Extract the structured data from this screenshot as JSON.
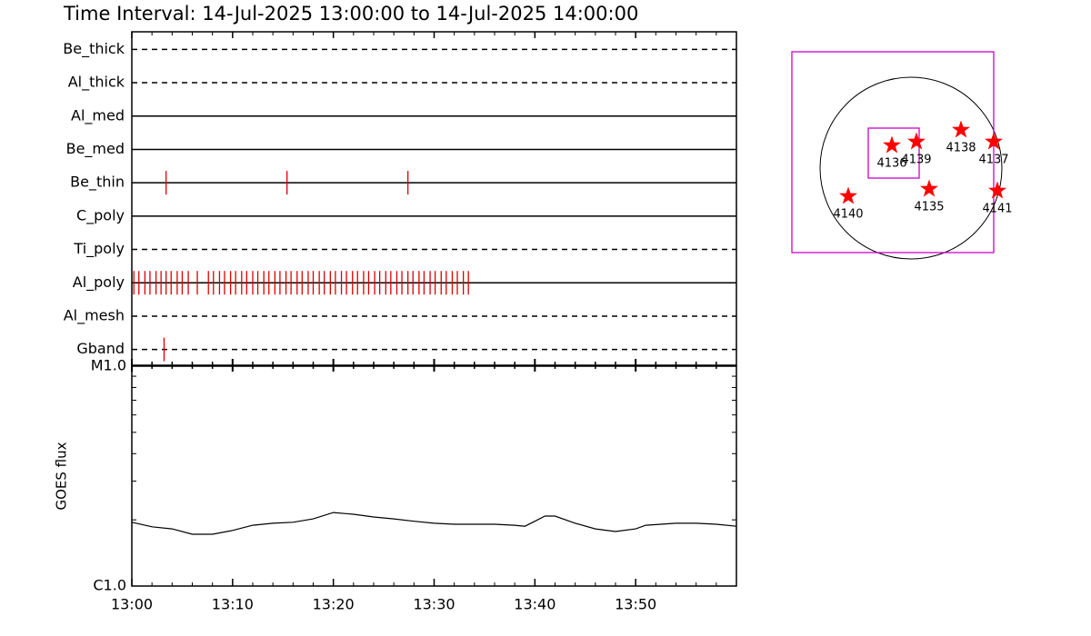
{
  "title": "Time Interval: 14-Jul-2025 13:00:00 to 14-Jul-2025 14:00:00",
  "chart_data": [
    {
      "type": "timeline",
      "xlim": [
        0,
        60
      ],
      "xticks": [
        0,
        10,
        20,
        30,
        40,
        50
      ],
      "xminor": [
        2,
        4,
        6,
        8,
        12,
        14,
        16,
        18,
        22,
        24,
        26,
        28,
        32,
        34,
        36,
        38,
        42,
        44,
        46,
        48,
        52,
        54,
        56,
        58
      ],
      "color": "#dd0000",
      "series": [
        {
          "name": "Be_thick",
          "style": "dashed",
          "values": []
        },
        {
          "name": "Al_thick",
          "style": "dashed",
          "values": []
        },
        {
          "name": "Al_med",
          "style": "solid",
          "values": []
        },
        {
          "name": "Be_med",
          "style": "solid",
          "values": []
        },
        {
          "name": "Be_thin",
          "style": "solid",
          "values": [
            3.4,
            15.4,
            27.4
          ]
        },
        {
          "name": "C_poly",
          "style": "solid",
          "values": []
        },
        {
          "name": "Ti_poly",
          "style": "dashed",
          "values": []
        },
        {
          "name": "Al_poly",
          "style": "solid",
          "values": [
            0.2,
            0.7,
            1.3,
            1.8,
            2.4,
            2.9,
            3.4,
            3.9,
            4.5,
            5.0,
            5.6,
            6.5,
            7.6,
            8.1,
            8.7,
            9.2,
            9.8,
            10.3,
            10.9,
            11.4,
            12.0,
            12.5,
            13.1,
            13.6,
            14.2,
            14.7,
            15.3,
            15.8,
            16.4,
            16.9,
            17.5,
            18.0,
            18.6,
            19.1,
            19.7,
            20.2,
            20.8,
            21.3,
            21.9,
            22.4,
            23.0,
            23.5,
            24.1,
            24.6,
            25.2,
            25.7,
            26.3,
            26.8,
            27.4,
            27.9,
            28.5,
            29.0,
            29.6,
            30.1,
            30.7,
            31.2,
            31.8,
            32.3,
            32.9,
            33.4
          ]
        },
        {
          "name": "Al_mesh",
          "style": "dashed",
          "values": []
        },
        {
          "name": "Gband",
          "style": "dashed",
          "values": [
            3.2
          ]
        }
      ]
    },
    {
      "type": "line",
      "ylabel": "GOES flux",
      "log": true,
      "xlim": [
        0,
        60
      ],
      "xticks": [
        {
          "value": 0,
          "label": "13:00"
        },
        {
          "value": 10,
          "label": "13:10"
        },
        {
          "value": 20,
          "label": "13:20"
        },
        {
          "value": 30,
          "label": "13:30"
        },
        {
          "value": 40,
          "label": "13:40"
        },
        {
          "value": 50,
          "label": "13:50"
        }
      ],
      "xminor": [
        2,
        4,
        6,
        8,
        12,
        14,
        16,
        18,
        22,
        24,
        26,
        28,
        32,
        34,
        36,
        38,
        42,
        44,
        46,
        48,
        52,
        54,
        56,
        58
      ],
      "ylim": [
        1e-06,
        1e-05
      ],
      "yticks": [
        {
          "value": 1e-06,
          "label": "C1.0"
        },
        {
          "value": 1e-05,
          "label": "M1.0"
        }
      ],
      "yminor": [
        2e-06,
        3e-06,
        4e-06,
        5e-06,
        6e-06,
        7e-06,
        8e-06,
        9e-06
      ],
      "color": "#000000",
      "x": [
        0,
        2,
        4,
        6,
        8,
        10,
        12,
        14,
        16,
        18,
        20,
        22,
        24,
        26,
        28,
        30,
        32,
        34,
        36,
        38,
        39,
        40,
        41,
        42,
        44,
        46,
        48,
        50,
        51,
        54,
        56,
        58,
        60
      ],
      "values": [
        1.95e-06,
        1.86e-06,
        1.82e-06,
        1.72e-06,
        1.72e-06,
        1.79e-06,
        1.89e-06,
        1.93e-06,
        1.95e-06,
        2.02e-06,
        2.16e-06,
        2.12e-06,
        2.06e-06,
        2.02e-06,
        1.97e-06,
        1.93e-06,
        1.91e-06,
        1.91e-06,
        1.91e-06,
        1.89e-06,
        1.87e-06,
        1.97e-06,
        2.08e-06,
        2.08e-06,
        1.93e-06,
        1.82e-06,
        1.77e-06,
        1.82e-06,
        1.89e-06,
        1.93e-06,
        1.93e-06,
        1.91e-06,
        1.87e-06
      ]
    },
    {
      "type": "disk",
      "star_color": "#ff0000",
      "box_color": "#cc00cc",
      "boxes": [
        {
          "x": -0.2,
          "y": 0.175,
          "w": 2.22,
          "h": 2.21
        },
        {
          "x": -0.19,
          "y": 0.165,
          "w": 0.56,
          "h": 0.55
        }
      ],
      "regions": [
        {
          "name": "4136",
          "x": -0.21,
          "y": 0.25
        },
        {
          "name": "4139",
          "x": 0.06,
          "y": 0.29
        },
        {
          "name": "4138",
          "x": 0.55,
          "y": 0.42
        },
        {
          "name": "4137",
          "x": 0.91,
          "y": 0.29
        },
        {
          "name": "4135",
          "x": 0.2,
          "y": -0.23
        },
        {
          "name": "4141",
          "x": 0.95,
          "y": -0.25
        },
        {
          "name": "4140",
          "x": -0.69,
          "y": -0.31
        }
      ]
    }
  ]
}
